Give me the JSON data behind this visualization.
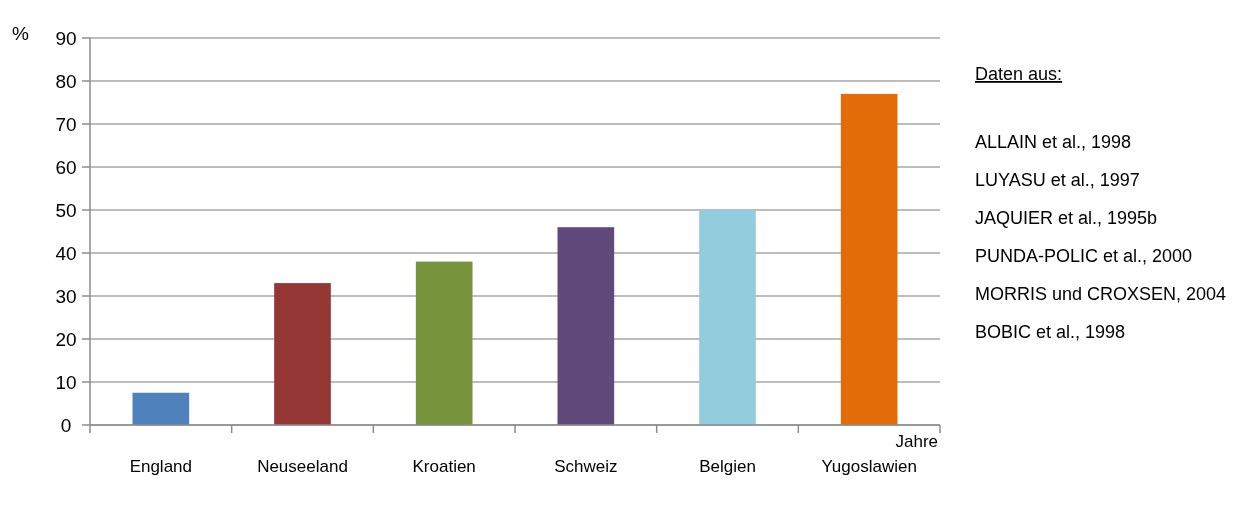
{
  "chart_data": {
    "type": "bar",
    "xlabel": "Jahre",
    "ylabel": "%",
    "categories": [
      "England",
      "Neuseeland",
      "Kroatien",
      "Schweiz",
      "Belgien",
      "Yugoslawien"
    ],
    "values": [
      7.5,
      33,
      38,
      46,
      50,
      77
    ],
    "colors": [
      "#4f81bd",
      "#953735",
      "#77933c",
      "#604a7b",
      "#93cddd",
      "#e36c09"
    ],
    "ylim": [
      0,
      90
    ],
    "yticks": [
      0,
      10,
      20,
      30,
      40,
      50,
      60,
      70,
      80,
      90
    ],
    "grid": "y",
    "annotations": [
      "Daten aus:",
      "ALLAIN et al., 1998",
      "LUYASU et al., 1997",
      "JAQUIER et al., 1995b",
      "PUNDA-POLIC et al., 2000",
      "MORRIS und CROXSEN, 2004",
      "BOBIC et al., 1998"
    ]
  }
}
